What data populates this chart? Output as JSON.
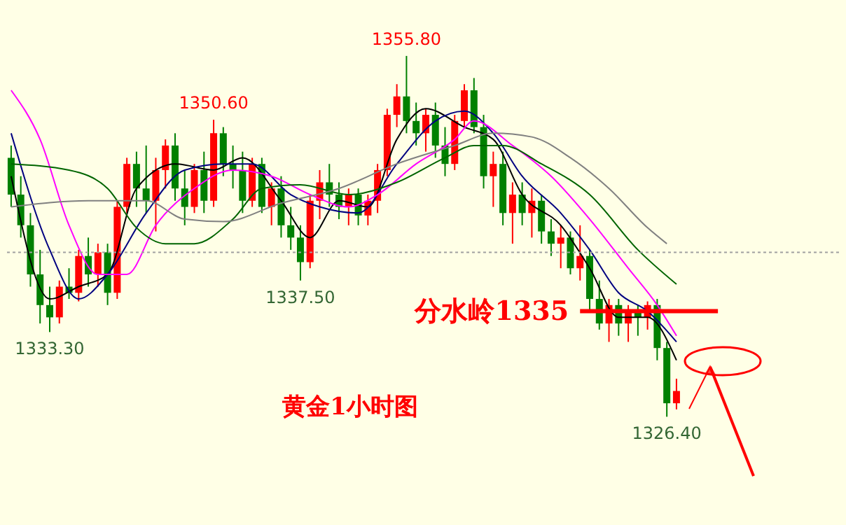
{
  "chart_data": {
    "type": "candlestick",
    "categories": [
      null,
      null,
      null,
      null,
      null,
      null,
      null,
      null,
      null,
      null,
      null,
      null,
      null,
      null,
      null,
      null,
      null,
      null,
      null,
      null,
      null,
      null,
      null,
      null,
      null,
      null,
      null,
      null,
      null,
      null,
      null,
      null,
      null,
      null,
      null,
      null,
      null,
      null,
      null,
      null,
      null,
      null,
      null,
      null,
      null,
      null,
      null,
      null,
      null,
      null,
      null,
      null,
      null,
      null,
      null,
      null,
      null,
      null,
      null,
      null,
      null,
      null,
      null,
      null,
      null,
      null,
      null,
      null,
      null,
      null
    ],
    "ohlc": [
      [
        1347.5,
        1348.5,
        1343.5,
        1344.5
      ],
      [
        1344.5,
        1346,
        1341,
        1342
      ],
      [
        1342,
        1343,
        1337,
        1338
      ],
      [
        1338,
        1340,
        1334,
        1335.5
      ],
      [
        1335.5,
        1337,
        1333.3,
        1334.5
      ],
      [
        1334.5,
        1337.5,
        1334,
        1337
      ],
      [
        1337,
        1338.5,
        1336,
        1336.5
      ],
      [
        1336.5,
        1340,
        1335.8,
        1339.5
      ],
      [
        1339.5,
        1341,
        1337,
        1338
      ],
      [
        1338,
        1340.5,
        1337,
        1339.8
      ],
      [
        1339.8,
        1340.5,
        1335.5,
        1336.5
      ],
      [
        1336.5,
        1344,
        1336,
        1343.5
      ],
      [
        1343.5,
        1347.5,
        1343,
        1347
      ],
      [
        1347,
        1348,
        1343.5,
        1345
      ],
      [
        1345,
        1348.5,
        1343,
        1344
      ],
      [
        1344,
        1347.5,
        1341.5,
        1346.5
      ],
      [
        1346.5,
        1349,
        1345,
        1348.5
      ],
      [
        1348.5,
        1349.5,
        1344,
        1345
      ],
      [
        1345,
        1346.5,
        1342,
        1343.5
      ],
      [
        1343.5,
        1347,
        1343,
        1346.5
      ],
      [
        1346.5,
        1348,
        1343,
        1344
      ],
      [
        1344,
        1350.6,
        1343.5,
        1349.5
      ],
      [
        1349.5,
        1350,
        1346,
        1347
      ],
      [
        1347,
        1348.5,
        1345,
        1346.5
      ],
      [
        1346.5,
        1348,
        1343,
        1344
      ],
      [
        1344,
        1347.5,
        1343.5,
        1347
      ],
      [
        1347,
        1347.5,
        1343,
        1343.5
      ],
      [
        1343.5,
        1345.5,
        1342,
        1345
      ],
      [
        1345,
        1346,
        1341,
        1342
      ],
      [
        1342,
        1343.5,
        1340,
        1341
      ],
      [
        1341,
        1342,
        1337.5,
        1339
      ],
      [
        1339,
        1344.5,
        1338.5,
        1344
      ],
      [
        1344,
        1346.5,
        1342.5,
        1345.5
      ],
      [
        1345.5,
        1347,
        1343.5,
        1344.5
      ],
      [
        1344.5,
        1345.5,
        1342.5,
        1343.5
      ],
      [
        1343.5,
        1345,
        1342,
        1344.5
      ],
      [
        1344.5,
        1345,
        1342,
        1342.8
      ],
      [
        1342.8,
        1344.5,
        1342,
        1344
      ],
      [
        1344,
        1347,
        1343,
        1346.5
      ],
      [
        1346.5,
        1351.5,
        1346,
        1351
      ],
      [
        1351,
        1353.5,
        1350,
        1352.5
      ],
      [
        1352.5,
        1355.8,
        1349.5,
        1350.5
      ],
      [
        1350.5,
        1352,
        1348.5,
        1349.5
      ],
      [
        1349.5,
        1351.5,
        1348,
        1351
      ],
      [
        1351,
        1352,
        1347.5,
        1348.5
      ],
      [
        1348.5,
        1350,
        1346,
        1347
      ],
      [
        1347,
        1351,
        1346.5,
        1350.5
      ],
      [
        1350.5,
        1353.5,
        1350,
        1353
      ],
      [
        1353,
        1354,
        1349.5,
        1350
      ],
      [
        1350,
        1351,
        1345,
        1346
      ],
      [
        1346,
        1348,
        1343.5,
        1347
      ],
      [
        1347,
        1348,
        1342,
        1343
      ],
      [
        1343,
        1345.5,
        1340.5,
        1344.5
      ],
      [
        1344.5,
        1345.5,
        1342,
        1343
      ],
      [
        1343,
        1345,
        1341,
        1344
      ],
      [
        1344,
        1344.5,
        1340.5,
        1341.5
      ],
      [
        1341.5,
        1342.5,
        1339.5,
        1340.5
      ],
      [
        1340.5,
        1342,
        1338.5,
        1341
      ],
      [
        1341,
        1341.5,
        1338,
        1338.5
      ],
      [
        1338.5,
        1342,
        1337.5,
        1339.5
      ],
      [
        1339.5,
        1340,
        1335,
        1336
      ],
      [
        1336,
        1337.5,
        1333.5,
        1334
      ],
      [
        1334,
        1336,
        1332.5,
        1335.5
      ],
      [
        1335.5,
        1336,
        1333,
        1334
      ],
      [
        1334,
        1335.5,
        1332.5,
        1335
      ],
      [
        1335,
        1335.5,
        1333,
        1334.5
      ],
      [
        1334.5,
        1335.8,
        1333.5,
        1335.5
      ],
      [
        1335.5,
        1336,
        1331,
        1332
      ],
      [
        1332,
        1332.5,
        1326.4,
        1327.5
      ],
      [
        1327.5,
        1329.5,
        1327,
        1328.5
      ]
    ],
    "colors": [
      "#008000",
      "#008000",
      "#008000",
      "#008000",
      "#008000",
      "#ff0000",
      "#008000",
      "#ff0000",
      "#008000",
      "#ff0000",
      "#008000",
      "#ff0000",
      "#ff0000",
      "#008000",
      "#008000",
      "#ff0000",
      "#ff0000",
      "#008000",
      "#008000",
      "#ff0000",
      "#008000",
      "#ff0000",
      "#008000",
      "#008000",
      "#008000",
      "#ff0000",
      "#008000",
      "#ff0000",
      "#008000",
      "#008000",
      "#008000",
      "#ff0000",
      "#ff0000",
      "#008000",
      "#008000",
      "#ff0000",
      "#008000",
      "#ff0000",
      "#ff0000",
      "#ff0000",
      "#ff0000",
      "#008000",
      "#008000",
      "#ff0000",
      "#008000",
      "#008000",
      "#ff0000",
      "#ff0000",
      "#008000",
      "#008000",
      "#ff0000",
      "#008000",
      "#ff0000",
      "#008000",
      "#ff0000",
      "#008000",
      "#008000",
      "#ff0000",
      "#008000",
      "#ff0000",
      "#008000",
      "#008000",
      "#ff0000",
      "#008000",
      "#ff0000",
      "#008000",
      "#ff0000",
      "#008000",
      "#008000",
      "#ff0000"
    ],
    "series": [
      {
        "type": "line",
        "color": "#000000",
        "values": [
          1346,
          null,
          null,
          null,
          1336,
          null,
          null,
          1337,
          null,
          null,
          1338,
          null,
          null,
          1345,
          null,
          null,
          null,
          1347,
          null,
          null,
          null,
          1346.5,
          null,
          null,
          1347.5,
          null,
          null,
          null,
          1344,
          null,
          null,
          1341,
          null,
          null,
          1344,
          null,
          null,
          1343.5,
          null,
          null,
          1349,
          null,
          null,
          1351.5,
          null,
          null,
          null,
          1350,
          null,
          null,
          1349,
          null,
          null,
          1344.5,
          null,
          null,
          null,
          1342,
          null,
          null,
          1338.5,
          null,
          null,
          1334.5,
          null,
          null,
          1334.5,
          null,
          null,
          1331
        ]
      },
      {
        "type": "line",
        "color": "#000080",
        "values": [
          1349.5,
          null,
          null,
          null,
          1340,
          null,
          null,
          1336,
          null,
          null,
          1338,
          null,
          null,
          null,
          1343,
          null,
          null,
          null,
          1346.5,
          null,
          null,
          null,
          1347,
          null,
          null,
          1347,
          null,
          null,
          null,
          1344.5,
          null,
          null,
          1343.5,
          null,
          null,
          null,
          1343,
          null,
          null,
          null,
          1347,
          null,
          null,
          null,
          1350.5,
          null,
          null,
          1351.3,
          null,
          null,
          1349.5,
          null,
          null,
          1346,
          null,
          null,
          null,
          1343,
          null,
          null,
          1340,
          null,
          null,
          1336.5,
          null,
          null,
          1335,
          null,
          null,
          1332.5
        ]
      },
      {
        "type": "line",
        "color": "#ff00ff",
        "values": [
          1353,
          null,
          null,
          1349,
          null,
          null,
          1342,
          null,
          null,
          1338,
          null,
          null,
          1338,
          null,
          null,
          1342,
          null,
          null,
          null,
          1345,
          null,
          null,
          null,
          1346.5,
          null,
          null,
          null,
          1346,
          null,
          null,
          null,
          1344.5,
          null,
          null,
          null,
          1343.5,
          null,
          null,
          1344.5,
          null,
          null,
          null,
          1347,
          null,
          null,
          null,
          1349,
          null,
          1350.5,
          null,
          null,
          null,
          1348.5,
          null,
          null,
          null,
          1346,
          null,
          null,
          null,
          1342.5,
          null,
          null,
          null,
          1338.5,
          null,
          null,
          1335.5,
          null,
          1333
        ]
      },
      {
        "type": "line",
        "color": "#006400",
        "values": [
          1347,
          null,
          null,
          null,
          null,
          null,
          1346.5,
          null,
          null,
          null,
          1345,
          null,
          null,
          1341.8,
          null,
          null,
          1340.5,
          null,
          null,
          1340.5,
          null,
          null,
          null,
          1342.5,
          null,
          null,
          1345,
          null,
          null,
          null,
          1345.3,
          null,
          null,
          null,
          null,
          1344.5,
          null,
          null,
          null,
          null,
          1345.5,
          null,
          null,
          null,
          null,
          1347.5,
          null,
          null,
          1348.5,
          null,
          null,
          1348.5,
          null,
          null,
          null,
          1347,
          null,
          null,
          null,
          null,
          1344.5,
          null,
          null,
          null,
          null,
          1340,
          null,
          null,
          null,
          1337.2
        ]
      },
      {
        "type": "line",
        "color": "#808080",
        "values": [
          1343.5,
          null,
          null,
          null,
          null,
          null,
          null,
          null,
          1344,
          null,
          null,
          null,
          null,
          null,
          1344,
          null,
          null,
          null,
          1342.5,
          null,
          null,
          null,
          1342.3,
          null,
          null,
          null,
          null,
          null,
          1343.8,
          null,
          null,
          null,
          null,
          null,
          1345,
          null,
          null,
          null,
          null,
          null,
          1347,
          null,
          null,
          null,
          null,
          null,
          1348.5,
          null,
          null,
          null,
          1349.5,
          null,
          null,
          null,
          1349.2,
          null,
          null,
          null,
          1347.5,
          null,
          null,
          null,
          1345,
          null,
          null,
          null,
          1341.8,
          null,
          1340.5,
          null
        ]
      }
    ],
    "annotations": [
      {
        "text": "1355.80",
        "y": 1355.8
      },
      {
        "text": "1350.60",
        "y": 1350.6
      },
      {
        "text": "1333.30",
        "y": 1333.3
      },
      {
        "text": "1337.50",
        "y": 1337.5
      },
      {
        "text": "1326.40",
        "y": 1326.4
      },
      "黄金1小时图"
    ],
    "ref_lines": [
      {
        "axis": "y",
        "value": 1335,
        "label": "分水岭1335",
        "color": "#ff0000",
        "line_style": "solid"
      },
      {
        "axis": "y",
        "value": 1339.8,
        "color": "#a0a0a0",
        "line_style": "dotted"
      }
    ],
    "grid": false
  }
}
